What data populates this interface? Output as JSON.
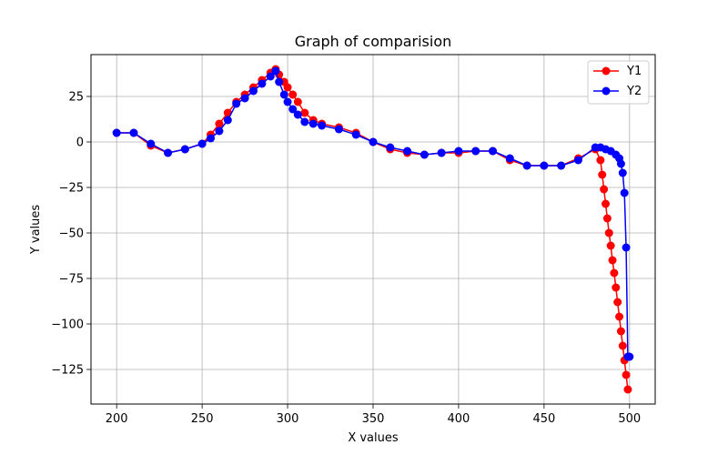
{
  "chart_data": {
    "type": "line",
    "title": "Graph of comparision",
    "xlabel": "X values",
    "ylabel": "Y values",
    "xlim": [
      185,
      515
    ],
    "ylim": [
      -144,
      48
    ],
    "xticks": [
      200,
      250,
      300,
      350,
      400,
      450,
      500
    ],
    "yticks": [
      25,
      0,
      -25,
      -50,
      -75,
      -100,
      -125
    ],
    "grid": true,
    "legend_position": "top-right",
    "series": [
      {
        "name": "Y1",
        "color": "#ff0000",
        "x": [
          200,
          210,
          220,
          230,
          240,
          250,
          255,
          260,
          265,
          270,
          275,
          280,
          285,
          290,
          293,
          295,
          298,
          300,
          303,
          306,
          310,
          315,
          320,
          330,
          340,
          350,
          360,
          370,
          380,
          390,
          400,
          410,
          420,
          430,
          440,
          450,
          460,
          470,
          480,
          483,
          484,
          485,
          486,
          487,
          488,
          489,
          490,
          491,
          492,
          493,
          494,
          495,
          496,
          497,
          498,
          499
        ],
        "y": [
          5,
          5,
          -2,
          -6,
          -4,
          -1,
          4,
          10,
          16,
          22,
          26,
          30,
          34,
          38,
          40,
          37,
          33,
          30,
          26,
          22,
          16,
          12,
          10,
          8,
          5,
          0,
          -4,
          -6,
          -7,
          -6,
          -6,
          -5,
          -5,
          -10,
          -13,
          -13,
          -13,
          -9,
          -4,
          -10,
          -18,
          -26,
          -34,
          -42,
          -50,
          -57,
          -65,
          -72,
          -80,
          -88,
          -96,
          -104,
          -112,
          -120,
          -128,
          -136
        ]
      },
      {
        "name": "Y2",
        "color": "#0000ff",
        "x": [
          200,
          210,
          220,
          230,
          240,
          250,
          255,
          260,
          265,
          270,
          275,
          280,
          285,
          290,
          293,
          295,
          298,
          300,
          303,
          306,
          310,
          315,
          320,
          330,
          340,
          350,
          360,
          370,
          380,
          390,
          400,
          410,
          420,
          430,
          440,
          450,
          460,
          470,
          480,
          483,
          486,
          489,
          492,
          494,
          495,
          496,
          497,
          498,
          499,
          500
        ],
        "y": [
          5,
          5,
          -1,
          -6,
          -4,
          -1,
          2,
          6,
          12,
          21,
          24,
          28,
          32,
          36,
          39,
          33,
          26,
          22,
          18,
          15,
          11,
          10,
          9,
          7,
          4,
          0,
          -3,
          -5,
          -7,
          -6,
          -5,
          -5,
          -5,
          -9,
          -13,
          -13,
          -13,
          -10,
          -3,
          -3,
          -4,
          -5,
          -7,
          -9,
          -12,
          -17,
          -28,
          -58,
          -118,
          -118
        ]
      }
    ]
  }
}
